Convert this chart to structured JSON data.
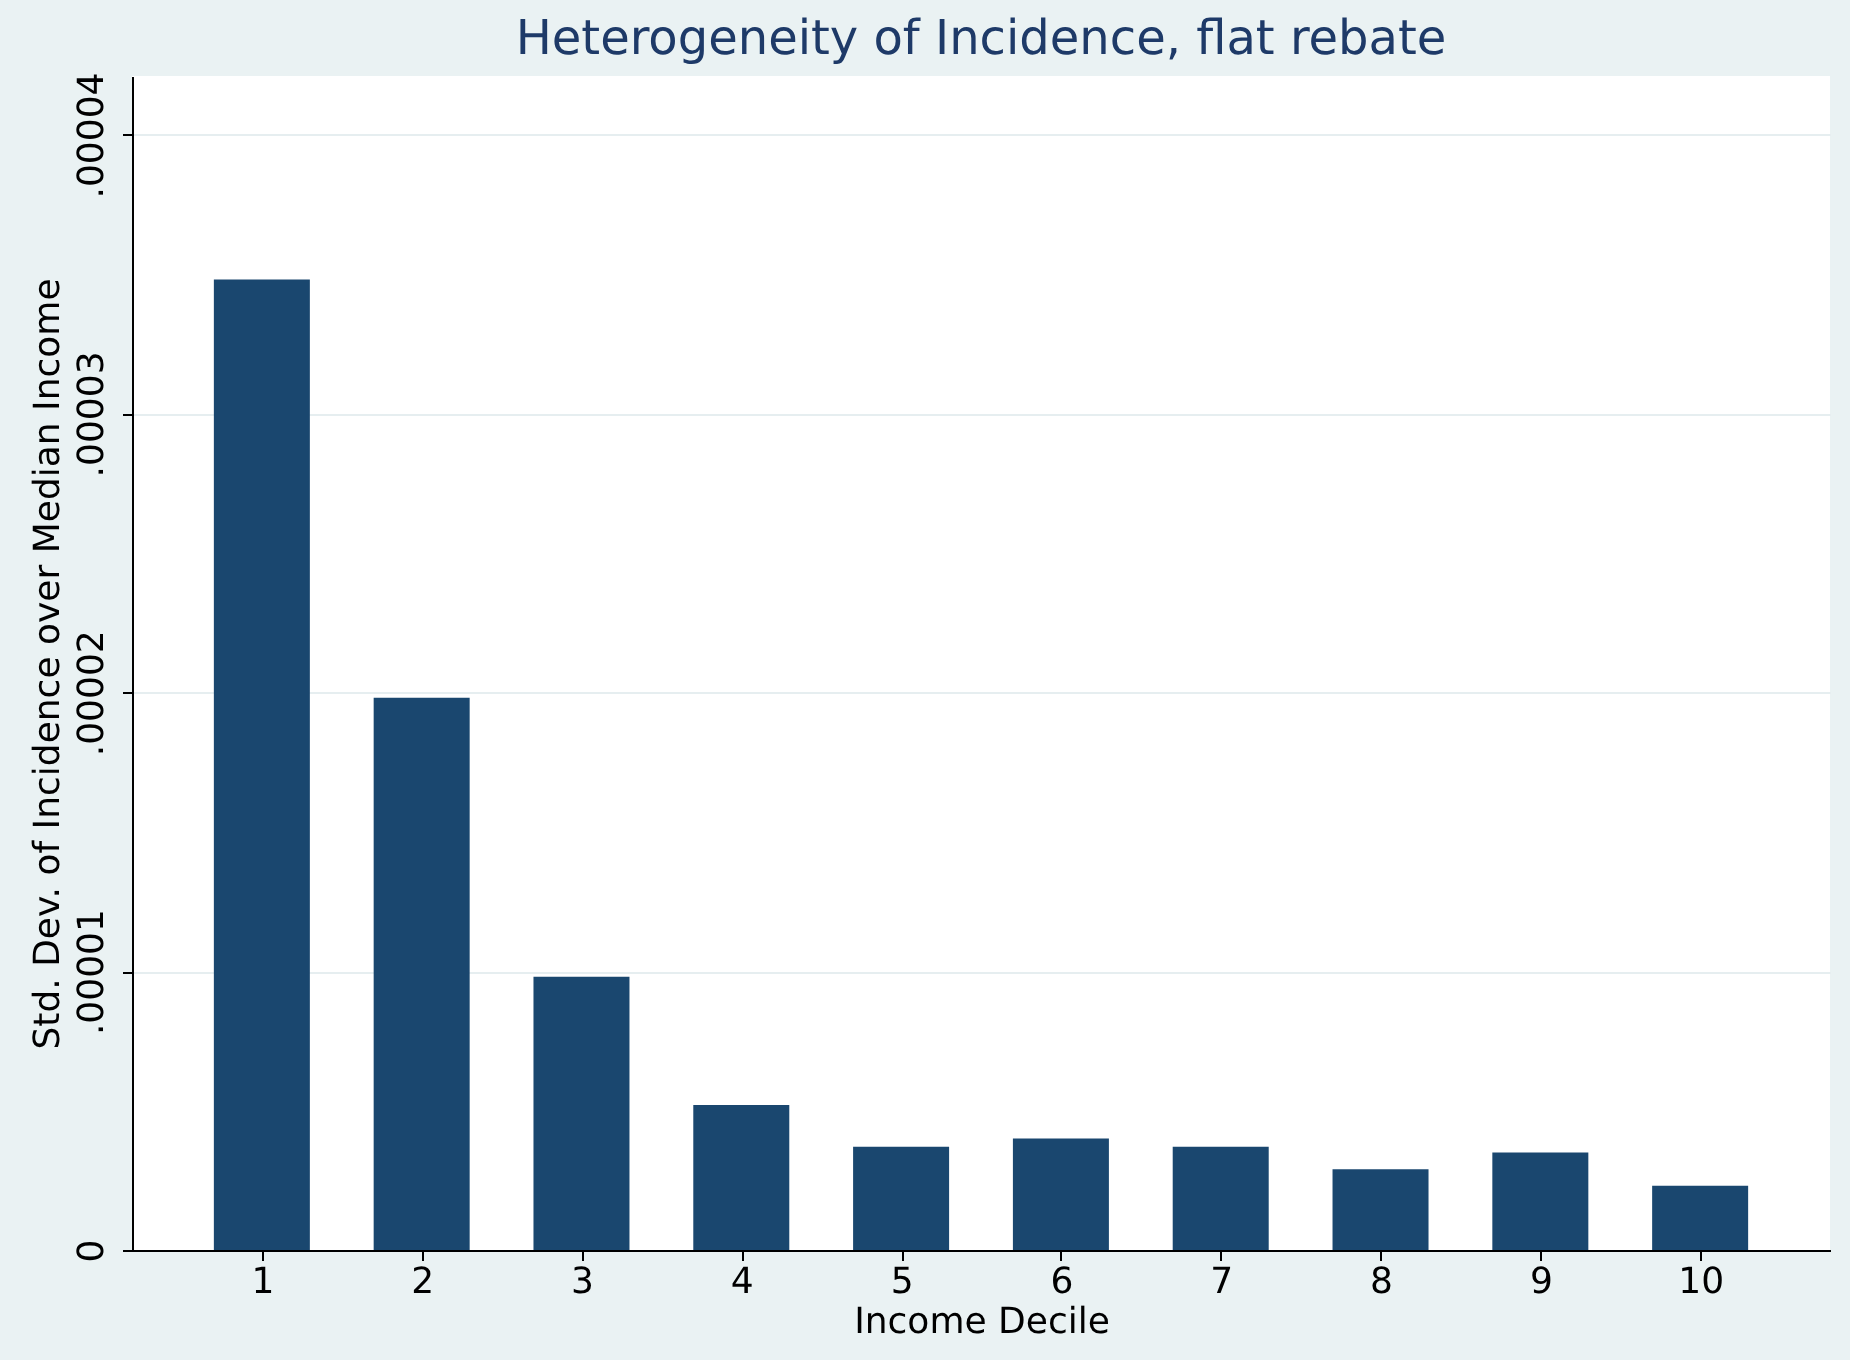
{
  "chart_data": {
    "type": "bar",
    "title": "Heterogeneity of Incidence, flat rebate",
    "xlabel": "Income Decile",
    "ylabel": "Std. Dev. of Incidence over Median Income",
    "categories": [
      "1",
      "2",
      "3",
      "4",
      "5",
      "6",
      "7",
      "8",
      "9",
      "10"
    ],
    "values": [
      3.48e-05,
      1.98e-05,
      9.8e-06,
      5.2e-06,
      3.7e-06,
      4e-06,
      3.7e-06,
      2.9e-06,
      3.5e-06,
      2.3e-06
    ],
    "color": "#1a476f",
    "ylim": [
      0,
      4.21e-05
    ],
    "yticks": [
      0,
      {
        "value": 1e-05,
        "label": ".00001"
      },
      {
        "value": 2e-05,
        "label": ".00002"
      },
      {
        "value": 3e-05,
        "label": ".00003"
      },
      {
        "value": 4e-05,
        "label": ".00004"
      }
    ],
    "grid": "y"
  }
}
